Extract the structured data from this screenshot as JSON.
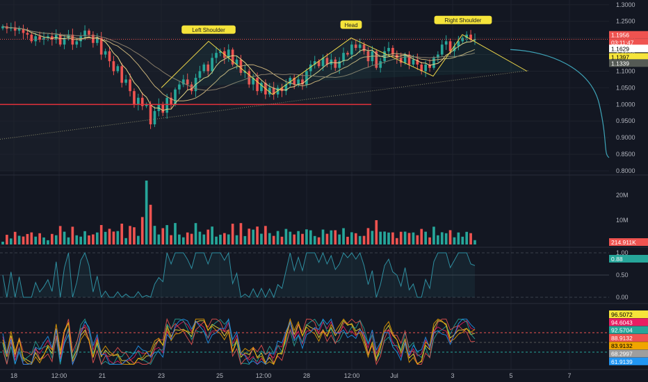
{
  "colors": {
    "bg": "#131722",
    "up": "#26a69a",
    "down": "#ef5350",
    "grid": "#1e222d",
    "axis_text": "#b2b5be",
    "pattern": "#f0d84a",
    "proj": "#3ea4b8",
    "ma_fast": "#e8d888",
    "ma_slow": "#c9b27a",
    "support": "#e5313b",
    "osc_line": "#2e8fa1",
    "label_bg": "#f5e43a"
  },
  "chart_data": [
    {
      "type": "candlestick",
      "title": "",
      "x_labels": [
        "18",
        "12:00",
        "21",
        "23",
        "25",
        "12:00",
        "28",
        "12:00",
        "Jul",
        "3",
        "5",
        "7"
      ],
      "y_ticks": [
        1.3,
        1.25,
        1.2,
        1.15,
        1.1,
        1.05,
        1.0,
        0.95,
        0.9,
        0.85,
        0.8
      ],
      "y_tick_labels": [
        "1.3000",
        "1.2500",
        "1.2000",
        "1.1500",
        "1.1000",
        "1.0500",
        "1.0000",
        "0.9500",
        "0.9000",
        "0.8500",
        "0.8000"
      ],
      "ylim": [
        0.8,
        1.31
      ],
      "candles_close": [
        1.235,
        1.228,
        1.232,
        1.222,
        1.228,
        1.215,
        1.21,
        1.19,
        1.205,
        1.195,
        1.2,
        1.205,
        1.195,
        1.21,
        1.18,
        1.2,
        1.21,
        1.18,
        1.19,
        1.205,
        1.222,
        1.21,
        1.185,
        1.2,
        1.15,
        1.16,
        1.13,
        1.1,
        1.115,
        1.065,
        1.075,
        1.04,
        1.0,
        1.02,
        0.995,
        1.0,
        0.94,
        0.98,
        1.0,
        0.975,
        1.02,
        1.0,
        1.045,
        1.06,
        1.075,
        1.06,
        1.04,
        1.08,
        1.1,
        1.12,
        1.1,
        1.14,
        1.155,
        1.16,
        1.14,
        1.165,
        1.12,
        1.135,
        1.095,
        1.1,
        1.06,
        1.08,
        1.04,
        1.065,
        1.03,
        1.05,
        1.03,
        1.05,
        1.04,
        1.06,
        1.08,
        1.06,
        1.075,
        1.06,
        1.1,
        1.12,
        1.13,
        1.115,
        1.14,
        1.12,
        1.135,
        1.11,
        1.13,
        1.155,
        1.15,
        1.18,
        1.17,
        1.18,
        1.16,
        1.13,
        1.16,
        1.11,
        1.13,
        1.16,
        1.17,
        1.15,
        1.14,
        1.125,
        1.15,
        1.12,
        1.135,
        1.12,
        1.1,
        1.12,
        1.11,
        1.14,
        1.15,
        1.18,
        1.19,
        1.16,
        1.175,
        1.19,
        1.2,
        1.21,
        1.195,
        1.1956
      ],
      "candle_color_note": "",
      "annotations": [
        "Left Shoulder",
        "Head",
        "Right Shoulder"
      ],
      "support_level": 1.0,
      "projection_label_values": [
        "1.1956",
        "03:11:47",
        "1.1629",
        "1.1397",
        "1.1339"
      ]
    },
    {
      "type": "bar",
      "name": "volume",
      "y_tick_labels": [
        "20M",
        "10M"
      ],
      "last_value_label": "214.911K"
    },
    {
      "type": "line",
      "name": "oscillator",
      "y_tick_labels": [
        "1.00",
        "0.50",
        "0.00"
      ],
      "last_value_label": "0.88"
    },
    {
      "type": "line",
      "name": "multi-oscillator",
      "value_labels": [
        "96.5072",
        "94.6043",
        "92.5704",
        "88.9132",
        "83.9132",
        "68.2997",
        "61.9139"
      ],
      "value_label_colors": [
        "#f5e43a",
        "#e91e63",
        "#26a69a",
        "#ef5350",
        "#f0a500",
        "#9e9e9e",
        "#2196f3"
      ]
    }
  ]
}
